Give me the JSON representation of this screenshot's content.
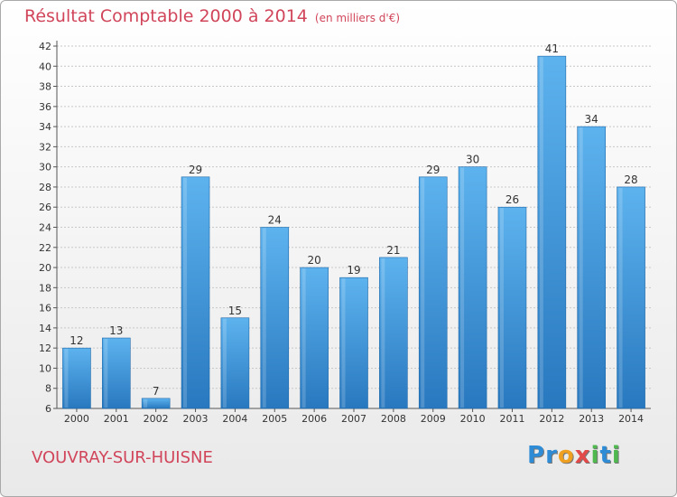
{
  "header": {
    "title": "Résultat Comptable 2000 à 2014",
    "subtitle": "(en milliers d'€)"
  },
  "footer": {
    "commune": "VOUVRAY-SUR-HUISNE",
    "logo_letters": [
      {
        "ch": "P",
        "color": "#2e8bd6"
      },
      {
        "ch": "r",
        "color": "#2e8bd6"
      },
      {
        "ch": "o",
        "color": "#f0a020"
      },
      {
        "ch": "x",
        "color": "#e24a4a"
      },
      {
        "ch": "i",
        "color": "#4fb84f"
      },
      {
        "ch": "t",
        "color": "#2e8bd6"
      },
      {
        "ch": "i",
        "color": "#4fb84f"
      }
    ]
  },
  "chart_data": {
    "type": "bar",
    "categories": [
      "2000",
      "2001",
      "2002",
      "2003",
      "2004",
      "2005",
      "2006",
      "2007",
      "2008",
      "2009",
      "2010",
      "2011",
      "2012",
      "2013",
      "2014"
    ],
    "values": [
      12,
      13,
      7,
      29,
      15,
      24,
      20,
      19,
      21,
      29,
      30,
      26,
      41,
      34,
      28
    ],
    "ylim": [
      6,
      42
    ],
    "yticks": [
      6,
      8,
      10,
      12,
      14,
      16,
      18,
      20,
      22,
      24,
      26,
      28,
      30,
      32,
      34,
      36,
      38,
      40,
      42
    ],
    "grid": true,
    "bar_color_light": "#5db3ee",
    "bar_color_dark": "#2878bf"
  }
}
